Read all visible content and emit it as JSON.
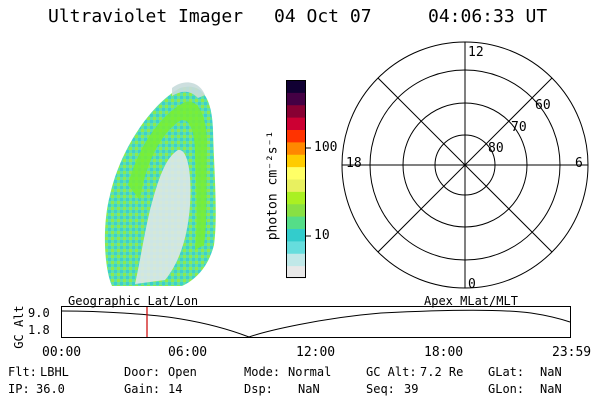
{
  "header": {
    "instrument": "Ultraviolet Imager",
    "date": "04 Oct 07",
    "time": "04:06:33 UT"
  },
  "colorbar": {
    "unit_label": "photon cm⁻²s⁻¹",
    "tick_labels": [
      "100",
      "10"
    ],
    "colors": [
      "#e8e8e8",
      "#c0e8e8",
      "#66dddd",
      "#33cccc",
      "#55dd88",
      "#88e044",
      "#aaf022",
      "#e8f060",
      "#ffff66",
      "#ffcc00",
      "#ff8800",
      "#ff3300",
      "#cc0033",
      "#880033",
      "#440044",
      "#110033"
    ]
  },
  "polar_plot": {
    "mlt_labels": {
      "top": "12",
      "left": "18",
      "right": "6",
      "bottom": "0"
    },
    "lat_labels": [
      "60",
      "70",
      "80"
    ]
  },
  "timeline": {
    "y_axis_label": "GC Alt",
    "y_ticks": [
      "9.0",
      "1.8"
    ],
    "left_label": "Geographic Lat/Lon",
    "right_label": "Apex MLat/MLT",
    "x_ticks": [
      "00:00",
      "06:00",
      "12:00",
      "18:00",
      "23:59"
    ]
  },
  "info": {
    "row1": [
      {
        "label": "Flt:",
        "value": "LBHL"
      },
      {
        "label": "Door:",
        "value": "Open"
      },
      {
        "label": "Mode:",
        "value": "Normal"
      },
      {
        "label": "GC Alt:",
        "value": "7.2 Re"
      },
      {
        "label": "GLat:",
        "value": "NaN"
      }
    ],
    "row2": [
      {
        "label": "IP:",
        "value": "36.0"
      },
      {
        "label": "Gain:",
        "value": "14"
      },
      {
        "label": "Dsp:",
        "value": "NaN"
      },
      {
        "label": "Seq:",
        "value": "39"
      },
      {
        "label": "GLon:",
        "value": "NaN"
      }
    ]
  },
  "colors": {
    "marker": "#cc0000",
    "aurora_low": "#44dddd",
    "aurora_mid": "#66ee33",
    "aurora_core": "#dde8e8"
  }
}
